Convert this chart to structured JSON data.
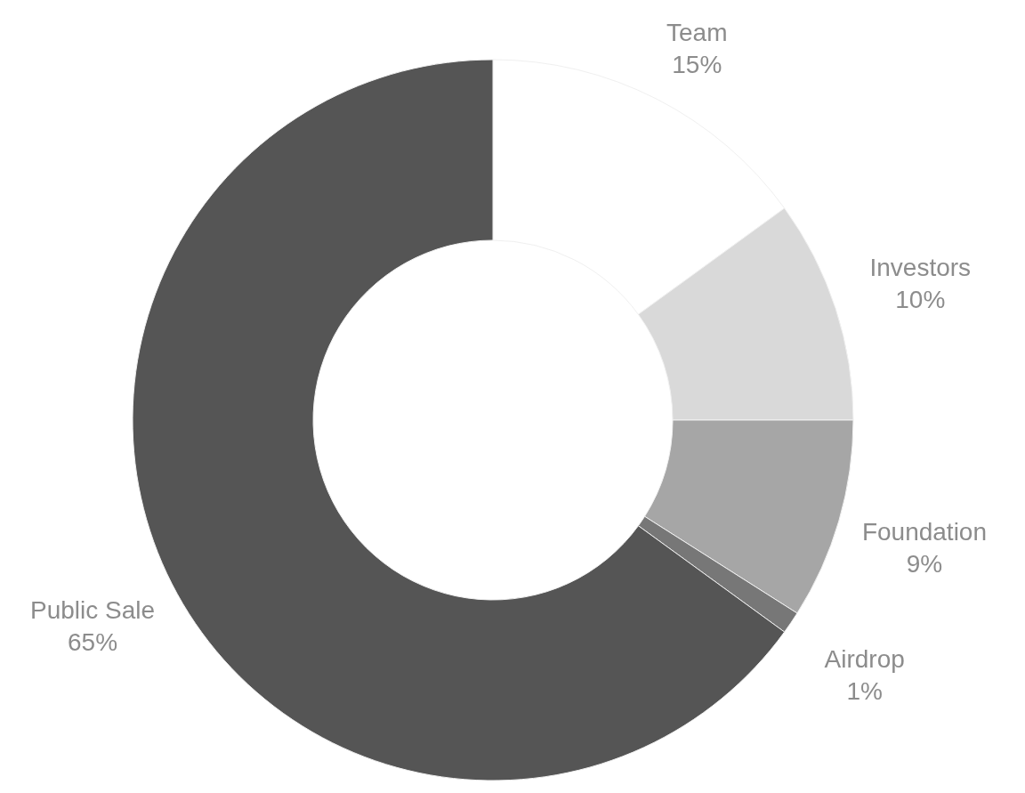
{
  "chart_data": {
    "type": "donut",
    "categories": [
      "Team",
      "Investors",
      "Foundation",
      "Airdrop",
      "Public Sale"
    ],
    "values": [
      15,
      10,
      9,
      1,
      65
    ],
    "value_labels": [
      "15%",
      "10%",
      "9%",
      "1%",
      "65%"
    ],
    "colors": [
      "#ffffff",
      "#d9d9d9",
      "#a6a6a6",
      "#777777",
      "#555555"
    ]
  }
}
